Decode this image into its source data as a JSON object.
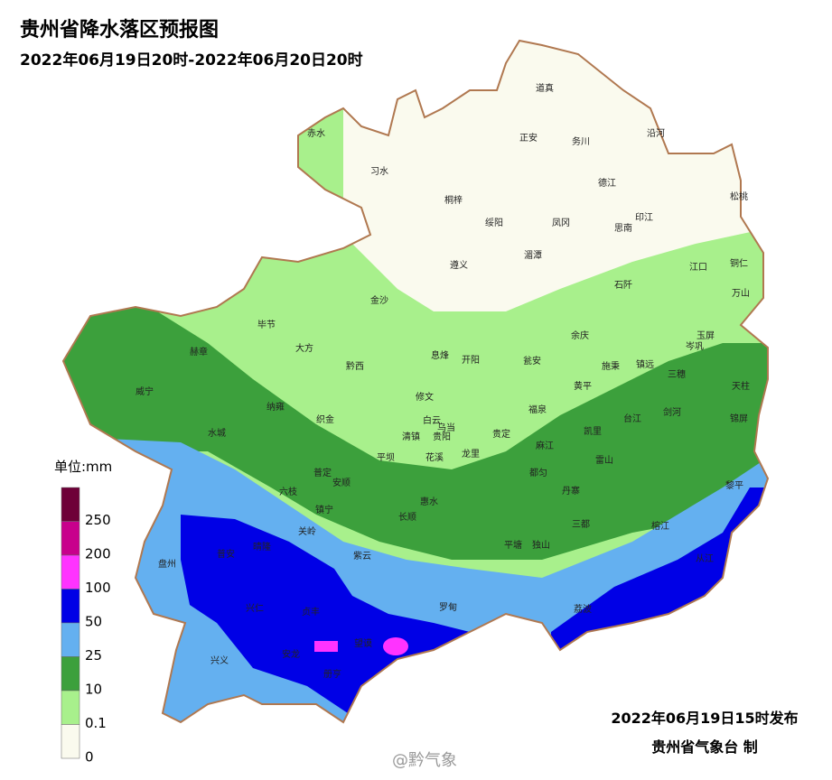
{
  "header": {
    "title": "贵州省降水落区预报图",
    "subtitle": "2022年06月19日20时-2022年06月20日20时"
  },
  "legend": {
    "unit": "单位:mm",
    "labels": [
      "250",
      "200",
      "100",
      "50",
      "25",
      "10",
      "0.1",
      "0"
    ],
    "colors": [
      "#6e0038",
      "#c8008c",
      "#ff33ff",
      "#0000e6",
      "#64b0f0",
      "#3ca03c",
      "#a8f08c",
      "#fafaee"
    ]
  },
  "places": [
    "赤水",
    "习水",
    "道真",
    "正安",
    "务川",
    "沿河",
    "桐梓",
    "绥阳",
    "凤冈",
    "德江",
    "印江",
    "思南",
    "松桃",
    "遵义",
    "湄潭",
    "江口",
    "铜仁",
    "石阡",
    "万山",
    "金沙",
    "毕节",
    "大方",
    "赫章",
    "黔西",
    "息烽",
    "开阳",
    "余庆",
    "玉屏",
    "岑巩",
    "瓮安",
    "施秉",
    "镇远",
    "三穗",
    "天柱",
    "威宁",
    "修文",
    "黄平",
    "纳雍",
    "白云",
    "乌当",
    "贵阳",
    "福泉",
    "剑河",
    "台江",
    "织金",
    "清镇",
    "贵定",
    "凯里",
    "锦屏",
    "水城",
    "麻江",
    "龙里",
    "平坝",
    "花溪",
    "雷山",
    "普定",
    "都匀",
    "安顺",
    "丹寨",
    "六枝",
    "惠水",
    "黎平",
    "镇宁",
    "长顺",
    "三都",
    "关岭",
    "平塘",
    "独山",
    "榕江",
    "普安",
    "晴隆",
    "紫云",
    "盘州",
    "从江",
    "罗甸",
    "荔波",
    "兴仁",
    "贞丰",
    "望谟",
    "兴义",
    "安龙",
    "册亨"
  ],
  "footer": {
    "issued": "2022年06月19日15时发布",
    "agency": "贵州省气象台 制",
    "watermark": "@黔气象"
  }
}
